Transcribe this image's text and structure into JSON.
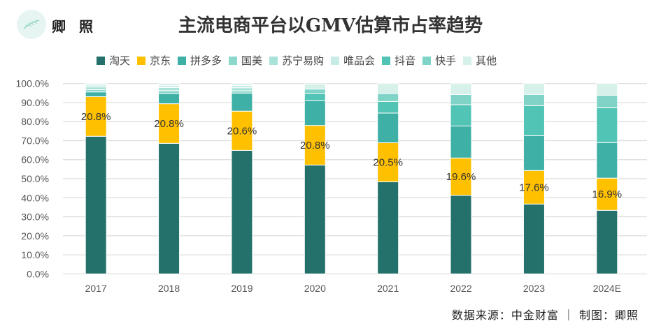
{
  "header": {
    "logo_text": "卿 照",
    "logo_icon": "feather-icon"
  },
  "footer": {
    "source": "数据来源：中金财富 ｜ 制图：卿照"
  },
  "chart_data": {
    "type": "bar",
    "stacked": true,
    "title": "主流电商平台以GMV估算市占率趋势",
    "xlabel": "",
    "ylabel": "",
    "ylim": [
      0,
      100
    ],
    "yticks": [
      "0.0%",
      "10.0%",
      "20.0%",
      "30.0%",
      "40.0%",
      "50.0%",
      "60.0%",
      "70.0%",
      "80.0%",
      "90.0%",
      "100.0%"
    ],
    "grid": true,
    "legend_position": "top",
    "categories": [
      "2017",
      "2018",
      "2019",
      "2020",
      "2021",
      "2022",
      "2023",
      "2024E"
    ],
    "series": [
      {
        "name": "淘天",
        "color": "#23716a",
        "values": [
          72.3,
          68.6,
          64.9,
          57.2,
          48.4,
          41.3,
          36.7,
          33.4
        ]
      },
      {
        "name": "京东",
        "color": "#ffc000",
        "values": [
          20.8,
          20.8,
          20.6,
          20.8,
          20.5,
          19.6,
          17.6,
          16.9
        ],
        "data_labels": [
          "20.8%",
          "20.8%",
          "20.6%",
          "20.8%",
          "20.5%",
          "19.6%",
          "17.6%",
          "16.9%"
        ]
      },
      {
        "name": "拼多多",
        "color": "#3eb0a6",
        "values": [
          2.5,
          5.4,
          9.5,
          13.2,
          15.6,
          16.8,
          18.3,
          18.7
        ]
      },
      {
        "name": "国美",
        "color": "#8dd8cc",
        "values": [
          1.2,
          1.5,
          1.2,
          0,
          0,
          0,
          0,
          0
        ]
      },
      {
        "name": "苏宁易购",
        "color": "#a8e2d8",
        "values": [
          1.4,
          1.6,
          1.6,
          0,
          0,
          0,
          0,
          0
        ]
      },
      {
        "name": "唯品会",
        "color": "#c6ece5",
        "values": [
          1.0,
          1.0,
          1.2,
          0,
          0,
          0,
          0,
          0
        ]
      },
      {
        "name": "抖音",
        "color": "#52c4b6",
        "values": [
          0,
          0,
          0,
          3.7,
          6.1,
          11.2,
          15.8,
          18.3
        ]
      },
      {
        "name": "快手",
        "color": "#7fd3c7",
        "values": [
          0,
          0,
          0,
          2.2,
          4.2,
          5.3,
          5.9,
          6.6
        ]
      },
      {
        "name": "其他",
        "color": "#d6f0ea",
        "values": [
          0.8,
          1.1,
          1.0,
          2.7,
          5.2,
          5.7,
          5.7,
          6.1
        ]
      }
    ]
  }
}
